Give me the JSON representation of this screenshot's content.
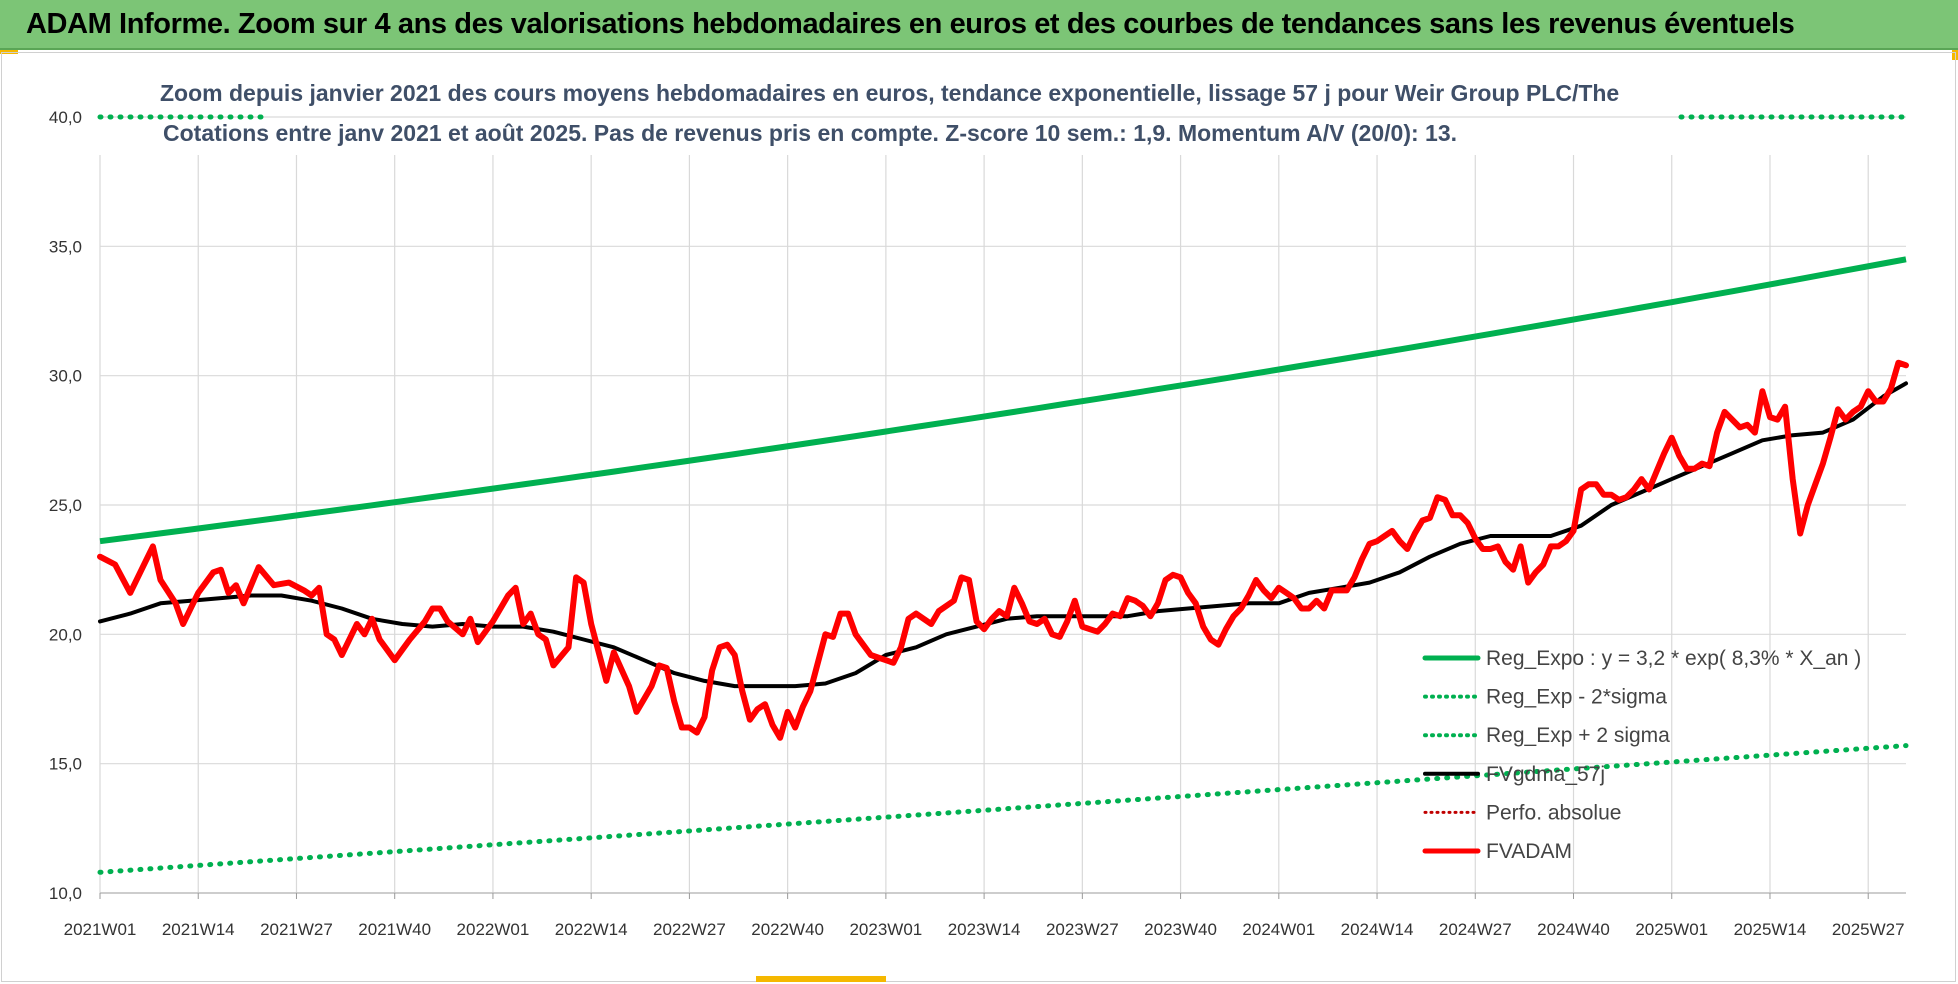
{
  "header": {
    "title": "ADAM Informe. Zoom sur 4 ans des valorisations hebdomadaires en euros et des courbes de tendances sans les revenus éventuels"
  },
  "colors": {
    "banner": "#7cc576",
    "trend": "#00b050",
    "fvadam": "#ff0000",
    "ma": "#000000",
    "perfo": "#c00000",
    "grid": "#d9d9d9"
  },
  "chart_data": {
    "type": "line",
    "title": "Zoom depuis janvier 2021 des cours moyens hebdomadaires en euros, tendance exponentielle, lissage 57 j pour Weir Group PLC/The",
    "subtitle": "Cotations entre janv 2021 et août 2025.  Pas de revenus pris en compte. Z-score 10 sem.: 1,9. Momentum A/V (20/0): 13.",
    "ylim": [
      10,
      40
    ],
    "yticks": [
      "10,0",
      "15,0",
      "20,0",
      "25,0",
      "30,0",
      "35,0",
      "40,0"
    ],
    "yticks_values": [
      10,
      15,
      20,
      25,
      30,
      35,
      40
    ],
    "xticks": [
      "2021W01",
      "2021W14",
      "2021W27",
      "2021W40",
      "2022W01",
      "2022W14",
      "2022W27",
      "2022W40",
      "2023W01",
      "2023W14",
      "2023W27",
      "2023W40",
      "2024W01",
      "2024W14",
      "2024W27",
      "2024W40",
      "2025W01",
      "2025W14",
      "2025W27"
    ],
    "x_range_weeks": [
      0,
      239
    ],
    "grid": true,
    "legend_position": "bottom-right",
    "legend": [
      {
        "label": "Reg_Expo : y = 3,2 * exp( 8,3% *  X_an )",
        "style": "solid-green"
      },
      {
        "label": "Reg_Exp - 2*sigma",
        "style": "dotted-green"
      },
      {
        "label": "Reg_Exp + 2 sigma",
        "style": "dotted-green"
      },
      {
        "label": "FVgdma_57j",
        "style": "solid-black"
      },
      {
        "label": "Perfo. absolue",
        "style": "dotted-red"
      },
      {
        "label": "FVADAM",
        "style": "solid-red"
      }
    ],
    "series": [
      {
        "name": "Reg_Expo : y = 3,2 * exp( 8,3% *  X_an )",
        "points": [
          [
            0,
            23.6
          ],
          [
            239,
            34.5
          ]
        ]
      },
      {
        "name": "Reg_Exp - 2*sigma",
        "points": [
          [
            0,
            10.8
          ],
          [
            239,
            15.7
          ]
        ]
      },
      {
        "name": "Reg_Exp + 2 sigma",
        "points": [
          [
            0,
            40.0
          ],
          [
            239,
            40.0
          ]
        ]
      },
      {
        "name": "FVgdma_57j",
        "points": [
          [
            0,
            20.5
          ],
          [
            4,
            20.8
          ],
          [
            8,
            21.2
          ],
          [
            12,
            21.3
          ],
          [
            16,
            21.4
          ],
          [
            20,
            21.5
          ],
          [
            24,
            21.5
          ],
          [
            28,
            21.3
          ],
          [
            32,
            21.0
          ],
          [
            36,
            20.6
          ],
          [
            40,
            20.4
          ],
          [
            44,
            20.3
          ],
          [
            48,
            20.4
          ],
          [
            52,
            20.3
          ],
          [
            56,
            20.3
          ],
          [
            60,
            20.1
          ],
          [
            64,
            19.8
          ],
          [
            68,
            19.5
          ],
          [
            72,
            19.0
          ],
          [
            76,
            18.5
          ],
          [
            80,
            18.2
          ],
          [
            84,
            18.0
          ],
          [
            88,
            18.0
          ],
          [
            92,
            18.0
          ],
          [
            96,
            18.1
          ],
          [
            100,
            18.5
          ],
          [
            104,
            19.2
          ],
          [
            108,
            19.5
          ],
          [
            112,
            20.0
          ],
          [
            116,
            20.3
          ],
          [
            120,
            20.6
          ],
          [
            124,
            20.7
          ],
          [
            128,
            20.7
          ],
          [
            132,
            20.7
          ],
          [
            136,
            20.7
          ],
          [
            140,
            20.9
          ],
          [
            144,
            21.0
          ],
          [
            148,
            21.1
          ],
          [
            152,
            21.2
          ],
          [
            156,
            21.2
          ],
          [
            160,
            21.6
          ],
          [
            164,
            21.8
          ],
          [
            168,
            22.0
          ],
          [
            172,
            22.4
          ],
          [
            176,
            23.0
          ],
          [
            180,
            23.5
          ],
          [
            184,
            23.8
          ],
          [
            188,
            23.8
          ],
          [
            192,
            23.8
          ],
          [
            196,
            24.2
          ],
          [
            200,
            25.0
          ],
          [
            204,
            25.5
          ],
          [
            208,
            26.0
          ],
          [
            212,
            26.5
          ],
          [
            216,
            27.0
          ],
          [
            220,
            27.5
          ],
          [
            224,
            27.7
          ],
          [
            228,
            27.8
          ],
          [
            232,
            28.3
          ],
          [
            236,
            29.2
          ],
          [
            239,
            29.7
          ]
        ]
      },
      {
        "name": "FVADAM",
        "points": [
          [
            0,
            23.0
          ],
          [
            2,
            22.7
          ],
          [
            4,
            21.6
          ],
          [
            6,
            22.8
          ],
          [
            7,
            23.4
          ],
          [
            8,
            22.1
          ],
          [
            10,
            21.2
          ],
          [
            11,
            20.4
          ],
          [
            13,
            21.6
          ],
          [
            15,
            22.4
          ],
          [
            16,
            22.5
          ],
          [
            17,
            21.6
          ],
          [
            18,
            21.9
          ],
          [
            19,
            21.2
          ],
          [
            21,
            22.6
          ],
          [
            23,
            21.9
          ],
          [
            25,
            22.0
          ],
          [
            27,
            21.7
          ],
          [
            28,
            21.5
          ],
          [
            29,
            21.8
          ],
          [
            30,
            20.0
          ],
          [
            31,
            19.8
          ],
          [
            32,
            19.2
          ],
          [
            34,
            20.4
          ],
          [
            35,
            20.0
          ],
          [
            36,
            20.6
          ],
          [
            37,
            19.8
          ],
          [
            39,
            19.0
          ],
          [
            41,
            19.8
          ],
          [
            43,
            20.5
          ],
          [
            44,
            21.0
          ],
          [
            45,
            21.0
          ],
          [
            46,
            20.5
          ],
          [
            48,
            20.0
          ],
          [
            49,
            20.6
          ],
          [
            50,
            19.7
          ],
          [
            52,
            20.5
          ],
          [
            54,
            21.5
          ],
          [
            55,
            21.8
          ],
          [
            56,
            20.4
          ],
          [
            57,
            20.8
          ],
          [
            58,
            20.0
          ],
          [
            59,
            19.8
          ],
          [
            60,
            18.8
          ],
          [
            62,
            19.5
          ],
          [
            63,
            22.2
          ],
          [
            64,
            22.0
          ],
          [
            65,
            20.4
          ],
          [
            67,
            18.2
          ],
          [
            68,
            19.3
          ],
          [
            70,
            18.0
          ],
          [
            71,
            17.0
          ],
          [
            72,
            17.5
          ],
          [
            73,
            18.0
          ],
          [
            74,
            18.8
          ],
          [
            75,
            18.7
          ],
          [
            76,
            17.4
          ],
          [
            77,
            16.4
          ],
          [
            78,
            16.4
          ],
          [
            79,
            16.2
          ],
          [
            80,
            16.8
          ],
          [
            81,
            18.6
          ],
          [
            82,
            19.5
          ],
          [
            83,
            19.6
          ],
          [
            84,
            19.2
          ],
          [
            85,
            17.8
          ],
          [
            86,
            16.7
          ],
          [
            87,
            17.1
          ],
          [
            88,
            17.3
          ],
          [
            89,
            16.5
          ],
          [
            90,
            16.0
          ],
          [
            91,
            17.0
          ],
          [
            92,
            16.4
          ],
          [
            93,
            17.2
          ],
          [
            94,
            17.8
          ],
          [
            96,
            20.0
          ],
          [
            97,
            19.9
          ],
          [
            98,
            20.8
          ],
          [
            99,
            20.8
          ],
          [
            100,
            20.0
          ],
          [
            101,
            19.6
          ],
          [
            102,
            19.2
          ],
          [
            104,
            19.0
          ],
          [
            105,
            18.9
          ],
          [
            106,
            19.5
          ],
          [
            107,
            20.6
          ],
          [
            108,
            20.8
          ],
          [
            110,
            20.4
          ],
          [
            111,
            20.9
          ],
          [
            113,
            21.3
          ],
          [
            114,
            22.2
          ],
          [
            115,
            22.1
          ],
          [
            116,
            20.5
          ],
          [
            117,
            20.2
          ],
          [
            118,
            20.6
          ],
          [
            119,
            20.9
          ],
          [
            120,
            20.7
          ],
          [
            121,
            21.8
          ],
          [
            122,
            21.2
          ],
          [
            123,
            20.5
          ],
          [
            124,
            20.4
          ],
          [
            125,
            20.6
          ],
          [
            126,
            20.0
          ],
          [
            127,
            19.9
          ],
          [
            128,
            20.5
          ],
          [
            129,
            21.3
          ],
          [
            130,
            20.3
          ],
          [
            131,
            20.2
          ],
          [
            132,
            20.1
          ],
          [
            133,
            20.4
          ],
          [
            134,
            20.8
          ],
          [
            135,
            20.7
          ],
          [
            136,
            21.4
          ],
          [
            137,
            21.3
          ],
          [
            138,
            21.1
          ],
          [
            139,
            20.7
          ],
          [
            140,
            21.2
          ],
          [
            141,
            22.1
          ],
          [
            142,
            22.3
          ],
          [
            143,
            22.2
          ],
          [
            144,
            21.6
          ],
          [
            145,
            21.2
          ],
          [
            146,
            20.3
          ],
          [
            147,
            19.8
          ],
          [
            148,
            19.6
          ],
          [
            149,
            20.2
          ],
          [
            150,
            20.7
          ],
          [
            151,
            21.0
          ],
          [
            152,
            21.5
          ],
          [
            153,
            22.1
          ],
          [
            154,
            21.7
          ],
          [
            155,
            21.4
          ],
          [
            156,
            21.8
          ],
          [
            157,
            21.6
          ],
          [
            158,
            21.4
          ],
          [
            159,
            21.0
          ],
          [
            160,
            21.0
          ],
          [
            161,
            21.3
          ],
          [
            162,
            21.0
          ],
          [
            163,
            21.7
          ],
          [
            164,
            21.7
          ],
          [
            165,
            21.7
          ],
          [
            166,
            22.2
          ],
          [
            167,
            22.9
          ],
          [
            168,
            23.5
          ],
          [
            169,
            23.6
          ],
          [
            170,
            23.8
          ],
          [
            171,
            24.0
          ],
          [
            172,
            23.6
          ],
          [
            173,
            23.3
          ],
          [
            174,
            23.9
          ],
          [
            175,
            24.4
          ],
          [
            176,
            24.5
          ],
          [
            177,
            25.3
          ],
          [
            178,
            25.2
          ],
          [
            179,
            24.6
          ],
          [
            180,
            24.6
          ],
          [
            181,
            24.3
          ],
          [
            182,
            23.7
          ],
          [
            183,
            23.3
          ],
          [
            184,
            23.3
          ],
          [
            185,
            23.4
          ],
          [
            186,
            22.8
          ],
          [
            187,
            22.5
          ],
          [
            188,
            23.4
          ],
          [
            189,
            22.0
          ],
          [
            190,
            22.4
          ],
          [
            191,
            22.7
          ],
          [
            192,
            23.4
          ],
          [
            193,
            23.4
          ],
          [
            194,
            23.6
          ],
          [
            195,
            24.0
          ],
          [
            196,
            25.6
          ],
          [
            197,
            25.8
          ],
          [
            198,
            25.8
          ],
          [
            199,
            25.4
          ],
          [
            200,
            25.4
          ],
          [
            201,
            25.2
          ],
          [
            202,
            25.3
          ],
          [
            203,
            25.6
          ],
          [
            204,
            26.0
          ],
          [
            205,
            25.6
          ],
          [
            206,
            26.3
          ],
          [
            207,
            27.0
          ],
          [
            208,
            27.6
          ],
          [
            209,
            26.9
          ],
          [
            210,
            26.4
          ],
          [
            211,
            26.4
          ],
          [
            212,
            26.6
          ],
          [
            213,
            26.5
          ],
          [
            214,
            27.8
          ],
          [
            215,
            28.6
          ],
          [
            216,
            28.3
          ],
          [
            217,
            28.0
          ],
          [
            218,
            28.1
          ],
          [
            219,
            27.8
          ],
          [
            220,
            29.4
          ],
          [
            221,
            28.4
          ],
          [
            222,
            28.3
          ],
          [
            223,
            28.8
          ],
          [
            224,
            26.0
          ],
          [
            225,
            23.9
          ],
          [
            226,
            25.0
          ],
          [
            227,
            25.8
          ],
          [
            228,
            26.6
          ],
          [
            229,
            27.6
          ],
          [
            230,
            28.7
          ],
          [
            231,
            28.3
          ],
          [
            232,
            28.6
          ],
          [
            233,
            28.8
          ],
          [
            234,
            29.4
          ],
          [
            235,
            29.0
          ],
          [
            236,
            29.0
          ],
          [
            237,
            29.5
          ],
          [
            238,
            30.5
          ],
          [
            239,
            30.4
          ]
        ]
      }
    ]
  }
}
